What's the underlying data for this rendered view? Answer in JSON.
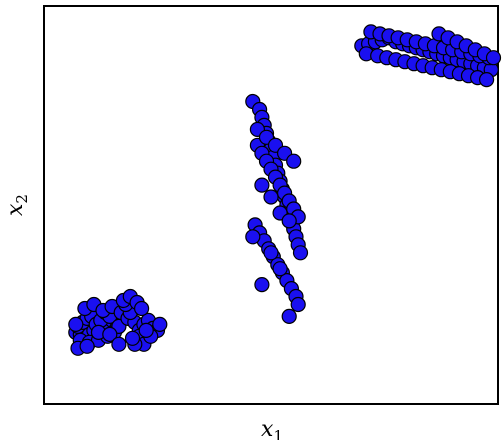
{
  "chart_data": {
    "type": "scatter",
    "title": "",
    "xlabel": "x",
    "xlabel_subscript": "1",
    "ylabel": "x",
    "ylabel_subscript": "2",
    "grid": false,
    "legend": "none",
    "xlim": [
      0,
      1
    ],
    "ylim": [
      0,
      1
    ],
    "marker_fill": "#1a10f0",
    "marker_edge": "#000000",
    "series": [
      {
        "x": [
          0.07,
          0.08,
          0.09,
          0.1,
          0.11,
          0.12,
          0.13,
          0.14,
          0.15,
          0.16,
          0.075,
          0.085,
          0.095,
          0.105,
          0.115,
          0.125,
          0.135,
          0.145,
          0.155,
          0.165,
          0.08,
          0.1,
          0.12,
          0.14,
          0.09,
          0.11,
          0.13,
          0.15,
          0.17,
          0.185,
          0.2,
          0.21,
          0.22,
          0.23,
          0.21,
          0.22,
          0.2,
          0.19,
          0.18,
          0.175,
          0.19,
          0.205,
          0.215,
          0.24,
          0.25,
          0.255,
          0.235,
          0.07,
          0.075,
          0.095,
          0.12,
          0.145,
          0.165,
          0.195,
          0.225
        ],
        "y": [
          0.18,
          0.175,
          0.17,
          0.175,
          0.185,
          0.18,
          0.19,
          0.2,
          0.21,
          0.19,
          0.195,
          0.205,
          0.215,
          0.22,
          0.2,
          0.21,
          0.23,
          0.22,
          0.18,
          0.195,
          0.16,
          0.155,
          0.16,
          0.17,
          0.24,
          0.25,
          0.235,
          0.245,
          0.23,
          0.215,
          0.205,
          0.185,
          0.2,
          0.21,
          0.17,
          0.15,
          0.15,
          0.23,
          0.25,
          0.26,
          0.27,
          0.255,
          0.24,
          0.19,
          0.185,
          0.2,
          0.17,
          0.2,
          0.14,
          0.145,
          0.18,
          0.175,
          0.15,
          0.165,
          0.185
        ]
      },
      {
        "x": [
          0.46,
          0.475,
          0.48,
          0.485,
          0.49,
          0.495,
          0.5,
          0.505,
          0.51,
          0.515,
          0.52,
          0.525,
          0.53,
          0.535,
          0.54,
          0.545,
          0.55,
          0.555,
          0.56,
          0.565,
          0.47,
          0.48,
          0.49,
          0.5,
          0.51,
          0.52,
          0.53,
          0.54,
          0.55,
          0.56,
          0.465,
          0.475,
          0.485,
          0.495,
          0.505,
          0.515,
          0.525,
          0.535,
          0.545,
          0.555,
          0.47,
          0.49,
          0.51,
          0.53,
          0.55,
          0.48,
          0.5,
          0.52,
          0.54,
          0.46,
          0.5,
          0.52,
          0.48,
          0.56,
          0.54
        ],
        "y": [
          0.76,
          0.74,
          0.72,
          0.7,
          0.68,
          0.66,
          0.64,
          0.62,
          0.6,
          0.58,
          0.56,
          0.54,
          0.52,
          0.5,
          0.48,
          0.46,
          0.44,
          0.42,
          0.4,
          0.38,
          0.65,
          0.63,
          0.61,
          0.59,
          0.57,
          0.55,
          0.53,
          0.51,
          0.49,
          0.47,
          0.45,
          0.43,
          0.41,
          0.39,
          0.37,
          0.35,
          0.33,
          0.31,
          0.29,
          0.27,
          0.69,
          0.67,
          0.65,
          0.63,
          0.61,
          0.55,
          0.52,
          0.48,
          0.46,
          0.42,
          0.38,
          0.34,
          0.3,
          0.25,
          0.22
        ]
      },
      {
        "x": [
          0.7,
          0.715,
          0.73,
          0.745,
          0.76,
          0.775,
          0.79,
          0.805,
          0.82,
          0.835,
          0.85,
          0.865,
          0.88,
          0.895,
          0.91,
          0.925,
          0.94,
          0.955,
          0.97,
          0.985,
          0.72,
          0.74,
          0.76,
          0.78,
          0.8,
          0.82,
          0.84,
          0.86,
          0.88,
          0.9,
          0.92,
          0.94,
          0.96,
          0.98,
          0.71,
          0.735,
          0.755,
          0.775,
          0.795,
          0.815,
          0.835,
          0.855,
          0.875,
          0.895,
          0.915,
          0.935,
          0.955,
          0.975,
          0.87,
          0.89,
          0.91,
          0.93,
          0.95,
          0.97,
          0.99
        ],
        "y": [
          0.9,
          0.905,
          0.91,
          0.915,
          0.92,
          0.91,
          0.905,
          0.9,
          0.895,
          0.89,
          0.885,
          0.88,
          0.875,
          0.87,
          0.865,
          0.86,
          0.855,
          0.85,
          0.845,
          0.84,
          0.935,
          0.93,
          0.925,
          0.92,
          0.915,
          0.91,
          0.905,
          0.9,
          0.895,
          0.89,
          0.885,
          0.88,
          0.875,
          0.87,
          0.88,
          0.875,
          0.87,
          0.865,
          0.86,
          0.855,
          0.85,
          0.845,
          0.84,
          0.835,
          0.83,
          0.825,
          0.82,
          0.815,
          0.93,
          0.92,
          0.91,
          0.9,
          0.89,
          0.88,
          0.87
        ]
      }
    ]
  }
}
